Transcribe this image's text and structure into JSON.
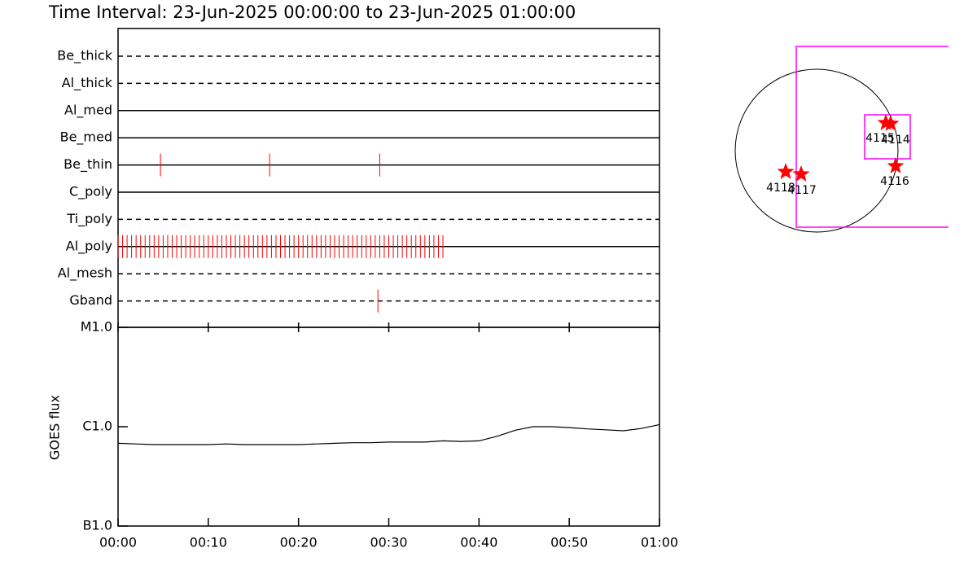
{
  "chart_data": [
    {
      "type": "timeline",
      "title": "Time Interval: 23-Jun-2025 00:00:00 to 23-Jun-2025 01:00:00",
      "color": "#ff0000",
      "xlim": [
        0,
        60
      ],
      "rows": [
        {
          "label": "Be_thick",
          "style": "dashed"
        },
        {
          "label": "Al_thick",
          "style": "dashed"
        },
        {
          "label": "Al_med",
          "style": "solid"
        },
        {
          "label": "Be_med",
          "style": "solid"
        },
        {
          "label": "Be_thin",
          "style": "solid",
          "times": [
            4.7,
            16.8,
            29.0
          ]
        },
        {
          "label": "C_poly",
          "style": "solid"
        },
        {
          "label": "Ti_poly",
          "style": "dashed"
        },
        {
          "label": "Al_poly",
          "style": "solid",
          "times": [
            0,
            0.5,
            1,
            1.5,
            2,
            2.5,
            3,
            3.5,
            4,
            4.5,
            5,
            5.5,
            6,
            6.5,
            7,
            7.5,
            8,
            8.5,
            9,
            9.5,
            10,
            10.5,
            11,
            11.5,
            12,
            12.5,
            13,
            13.5,
            14,
            14.5,
            15,
            15.5,
            16,
            16.5,
            17,
            17.5,
            18,
            18.5,
            19,
            19.5,
            20,
            20.5,
            21,
            21.5,
            22,
            22.5,
            23,
            23.5,
            24,
            24.5,
            25,
            25.5,
            26,
            26.5,
            27,
            27.5,
            28,
            28.5,
            29,
            29.5,
            30,
            30.5,
            31,
            31.5,
            32,
            32.5,
            33,
            33.5,
            34,
            34.5,
            35,
            35.5,
            36
          ]
        },
        {
          "label": "Al_mesh",
          "style": "dashed"
        },
        {
          "label": "Gband",
          "style": "dashed",
          "times": [
            28.8
          ]
        }
      ]
    },
    {
      "type": "line",
      "y_label": "GOES flux",
      "color": "#000000",
      "log_scale": true,
      "xlim": [
        0,
        60
      ],
      "xticks": [
        {
          "value": 0,
          "label": "00:00"
        },
        {
          "value": 10,
          "label": "00:10"
        },
        {
          "value": 20,
          "label": "00:20"
        },
        {
          "value": 30,
          "label": "00:30"
        },
        {
          "value": 40,
          "label": "00:40"
        },
        {
          "value": 50,
          "label": "00:50"
        },
        {
          "value": 60,
          "label": "01:00"
        }
      ],
      "ylim": [
        1e-07,
        1e-05
      ],
      "yticks": [
        {
          "value": 1e-07,
          "label": "B1.0"
        },
        {
          "value": 1e-06,
          "label": "C1.0"
        },
        {
          "value": 1e-05,
          "label": "M1.0"
        }
      ],
      "x": [
        0,
        2,
        4,
        6,
        8,
        10,
        12,
        14,
        16,
        18,
        20,
        22,
        24,
        26,
        28,
        30,
        32,
        34,
        36,
        38,
        40,
        42,
        44,
        46,
        48,
        50,
        52,
        54,
        56,
        58,
        60
      ],
      "values": [
        6.8e-07,
        6.7e-07,
        6.6e-07,
        6.6e-07,
        6.6e-07,
        6.6e-07,
        6.7e-07,
        6.6e-07,
        6.6e-07,
        6.6e-07,
        6.6e-07,
        6.7e-07,
        6.8e-07,
        6.9e-07,
        6.9e-07,
        7e-07,
        7e-07,
        7e-07,
        7.2e-07,
        7.1e-07,
        7.2e-07,
        8e-07,
        9.2e-07,
        1e-06,
        1e-06,
        9.8e-07,
        9.5e-07,
        9.3e-07,
        9.1e-07,
        9.6e-07,
        1.05e-06
      ]
    }
  ],
  "map": {
    "regions": [
      "4115",
      "4114",
      "4116",
      "4118",
      "4117"
    ],
    "box_color": "#ff00ff",
    "star_color": "#ff0000"
  }
}
